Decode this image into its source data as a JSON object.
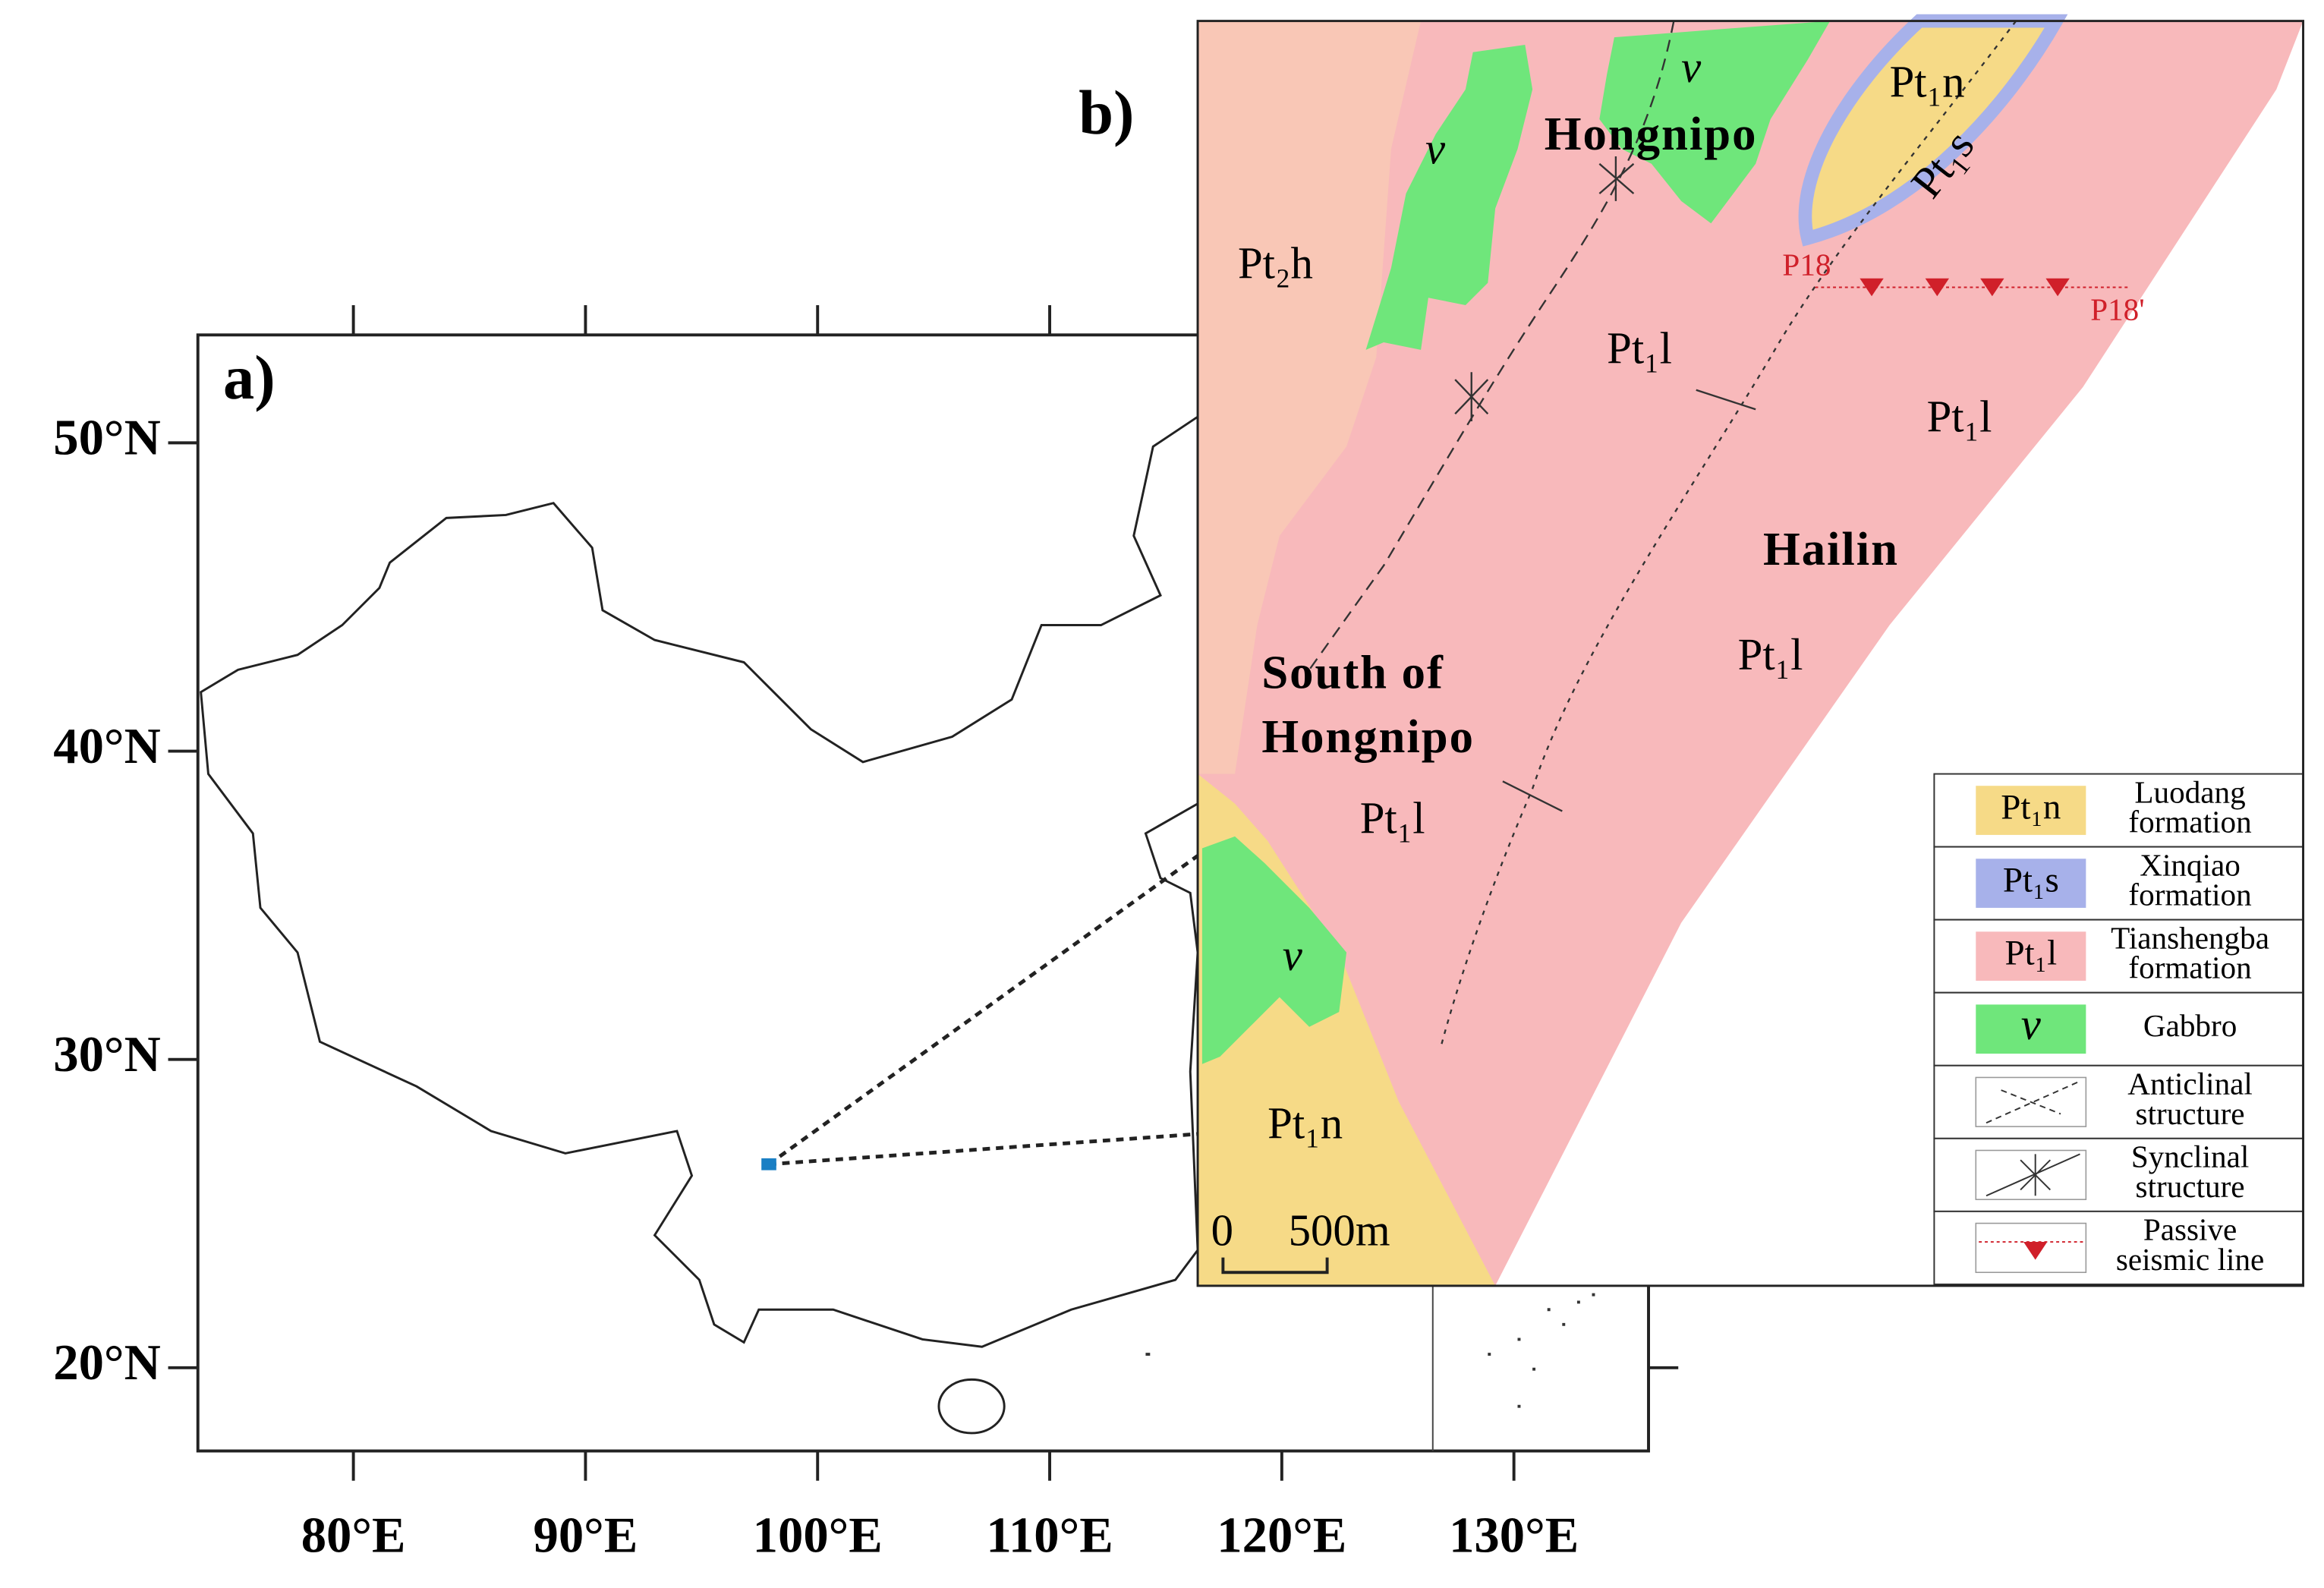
{
  "panel_a": {
    "label": "a)",
    "lonlim": [
      73.3,
      135.8
    ],
    "latlim": [
      17.3,
      53.5
    ],
    "lon_ticks": [
      {
        "value": 80,
        "label": "80°E"
      },
      {
        "value": 90,
        "label": "90°E"
      },
      {
        "value": 100,
        "label": "100°E"
      },
      {
        "value": 110,
        "label": "110°E"
      },
      {
        "value": 120,
        "label": "120°E"
      },
      {
        "value": 130,
        "label": "130°E"
      }
    ],
    "lat_ticks": [
      {
        "value": 50,
        "label": "50°N"
      },
      {
        "value": 40,
        "label": "40°N"
      },
      {
        "value": 30,
        "label": "30°N"
      },
      {
        "value": 20,
        "label": "20°N"
      }
    ],
    "site": {
      "lon": 97.9,
      "lat": 26.6
    }
  },
  "panel_b": {
    "label": "b)",
    "labels": {
      "pt2h": "Pt₂h",
      "hongnipo": "Hongnipo",
      "gabbro": "v",
      "pt1n": "Pt₁n",
      "pt1s": "Pt₁s",
      "pt1l": "Pt₁l",
      "hailin": "Hailin",
      "south_1": "South of",
      "south_2": "Hongnipo"
    },
    "seismic_line": [
      "P18",
      "P18'"
    ],
    "scale_bar": [
      "0",
      "500m"
    ],
    "legend": [
      {
        "symbol": "Pt₁n",
        "text": [
          "Luodang",
          "formation"
        ]
      },
      {
        "symbol": "Pt₁s",
        "text": [
          "Xinqiao",
          "formation"
        ]
      },
      {
        "symbol": "Pt₁l",
        "text": [
          "Tianshengba",
          "formation"
        ]
      },
      {
        "symbol": "v",
        "text": [
          "Gabbro"
        ]
      },
      {
        "text": [
          "Anticlinal",
          "structure"
        ]
      },
      {
        "text": [
          "Synclinal",
          "structure"
        ]
      },
      {
        "text": [
          "Passive",
          "seismic line"
        ]
      }
    ]
  }
}
